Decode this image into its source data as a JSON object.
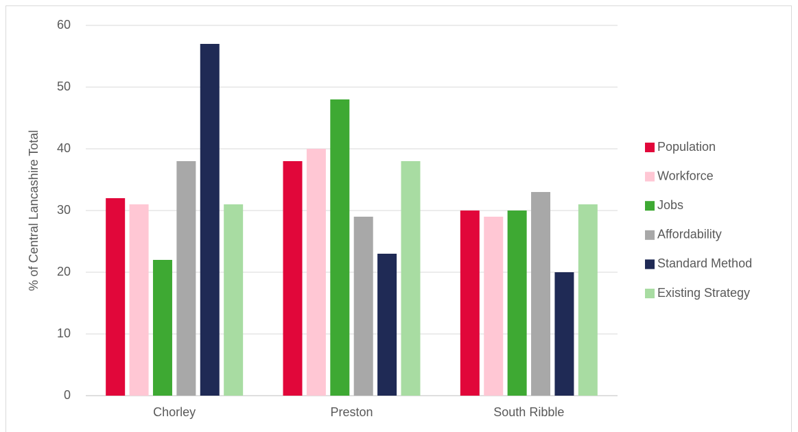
{
  "chart_data": {
    "type": "bar",
    "title": "",
    "xlabel": "",
    "ylabel": "% of Central Lancashire Total",
    "ylim": [
      0,
      60
    ],
    "yticks": [
      0,
      10,
      20,
      30,
      40,
      50,
      60
    ],
    "grid": true,
    "legend_position": "right",
    "categories": [
      "Chorley",
      "Preston",
      "South Ribble"
    ],
    "series": [
      {
        "name": "Population",
        "color": "#e1073a",
        "values": [
          32,
          38,
          30
        ]
      },
      {
        "name": "Workforce",
        "color": "#ffc7d4",
        "values": [
          31,
          40,
          29
        ]
      },
      {
        "name": "Jobs",
        "color": "#3ea933",
        "values": [
          22,
          48,
          30
        ]
      },
      {
        "name": "Affordability",
        "color": "#a8a8a8",
        "values": [
          38,
          29,
          33
        ]
      },
      {
        "name": "Standard Method",
        "color": "#1f2a55",
        "values": [
          57,
          23,
          20
        ]
      },
      {
        "name": "Existing Strategy",
        "color": "#a8dca2",
        "values": [
          31,
          38,
          31
        ]
      }
    ]
  }
}
